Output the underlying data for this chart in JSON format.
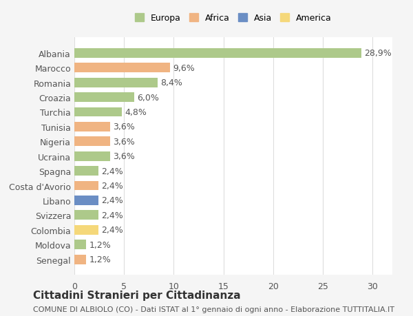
{
  "countries": [
    "Albania",
    "Marocco",
    "Romania",
    "Croazia",
    "Turchia",
    "Tunisia",
    "Nigeria",
    "Ucraina",
    "Spagna",
    "Costa d'Avorio",
    "Libano",
    "Svizzera",
    "Colombia",
    "Moldova",
    "Senegal"
  ],
  "values": [
    28.9,
    9.6,
    8.4,
    6.0,
    4.8,
    3.6,
    3.6,
    3.6,
    2.4,
    2.4,
    2.4,
    2.4,
    2.4,
    1.2,
    1.2
  ],
  "labels": [
    "28,9%",
    "9,6%",
    "8,4%",
    "6,0%",
    "4,8%",
    "3,6%",
    "3,6%",
    "3,6%",
    "2,4%",
    "2,4%",
    "2,4%",
    "2,4%",
    "2,4%",
    "1,2%",
    "1,2%"
  ],
  "continents": [
    "Europa",
    "Africa",
    "Europa",
    "Europa",
    "Europa",
    "Africa",
    "Africa",
    "Europa",
    "Europa",
    "Africa",
    "Asia",
    "Europa",
    "America",
    "Europa",
    "Africa"
  ],
  "continent_colors": {
    "Europa": "#adc98a",
    "Africa": "#f0b482",
    "Asia": "#6b8ec4",
    "America": "#f5d87a"
  },
  "legend_order": [
    "Europa",
    "Africa",
    "Asia",
    "America"
  ],
  "title1": "Cittadini Stranieri per Cittadinanza",
  "title2": "COMUNE DI ALBIOLO (CO) - Dati ISTAT al 1° gennaio di ogni anno - Elaborazione TUTTITALIA.IT",
  "xlim": [
    0,
    32
  ],
  "xticks": [
    0,
    5,
    10,
    15,
    20,
    25,
    30
  ],
  "background_color": "#f5f5f5",
  "bar_background": "#ffffff",
  "grid_color": "#dddddd",
  "text_color": "#555555",
  "label_fontsize": 9,
  "title1_fontsize": 11,
  "title2_fontsize": 8
}
